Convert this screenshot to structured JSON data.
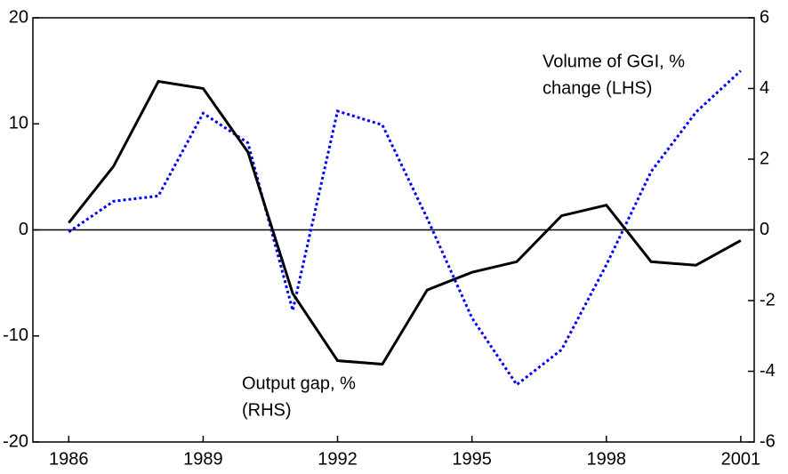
{
  "chart_data": {
    "type": "line",
    "x": [
      1986,
      1987,
      1988,
      1989,
      1990,
      1991,
      1992,
      1993,
      1994,
      1995,
      1996,
      1997,
      1998,
      1999,
      2000,
      2001
    ],
    "series": [
      {
        "color": "#0000ff",
        "dash": "dotted",
        "axis": "y",
        "values": [
          -0.2,
          2.7,
          3.2,
          11.0,
          8.2,
          -7.6,
          11.2,
          9.9,
          1.1,
          -8.3,
          -14.6,
          -11.3,
          -3.3,
          5.5,
          11.1,
          15.0
        ]
      },
      {
        "color": "#000000",
        "dash": "solid",
        "axis": "y2",
        "values": [
          0.2,
          1.8,
          4.2,
          4.0,
          2.2,
          -1.8,
          -3.7,
          -3.8,
          -1.7,
          -1.2,
          -0.9,
          0.4,
          0.7,
          -0.9,
          -1.0,
          -0.3
        ]
      }
    ],
    "annotations": [
      [
        "Volume of GGI, %",
        "change (LHS)"
      ],
      [
        "Output gap, %",
        "(RHS)"
      ]
    ],
    "xlim": [
      1985.2,
      2001.3
    ],
    "xticks": [
      1986,
      1989,
      1992,
      1995,
      1998,
      2001
    ],
    "ylim": [
      -20,
      20
    ],
    "yticks": [
      -20,
      -10,
      0,
      10,
      20
    ],
    "y2lim": [
      -6,
      6
    ],
    "y2ticks": [
      -6,
      -4,
      -2,
      0,
      2,
      4,
      6
    ],
    "grid": false
  }
}
